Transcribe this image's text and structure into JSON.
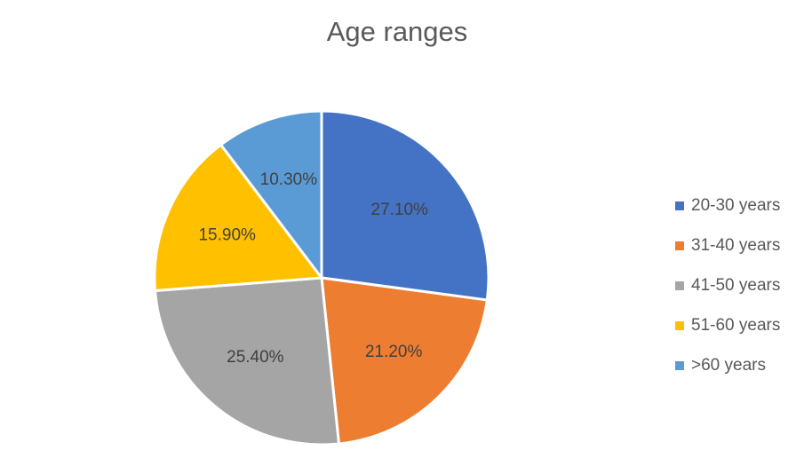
{
  "chart_data": {
    "type": "pie",
    "title": "Age ranges",
    "categories": [
      "20-30 years",
      "31-40 years",
      "41-50 years",
      "51-60 years",
      ">60 years"
    ],
    "values": [
      27.1,
      21.2,
      25.4,
      15.9,
      10.3
    ],
    "value_labels": [
      "27.10%",
      "21.20%",
      "25.40%",
      "15.90%",
      "10.30%"
    ],
    "colors": [
      "#4472C4",
      "#ED7D31",
      "#A5A5A5",
      "#FFC000",
      "#5B9BD5"
    ],
    "start_angle_deg": 0,
    "direction": "clockwise",
    "legend": "right"
  }
}
